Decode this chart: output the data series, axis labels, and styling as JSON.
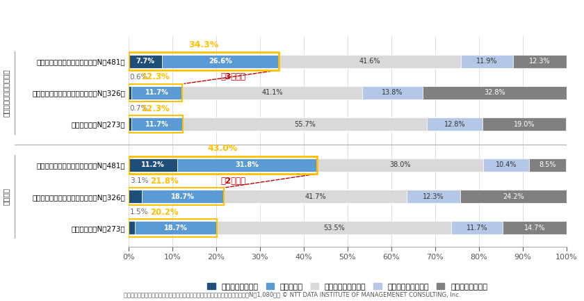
{
  "categories_eng": [
    "働き方改革に取り組んでいる（N＝481）",
    "働き方改革に取り組んでいない（N＝326）",
    "わからない（N＝273）"
  ],
  "categories_cont": [
    "働き方改革に取り組んでいる（N＝481）",
    "働き方改革に取り組んでいない（N＝326）",
    "わからない（N＝273）"
  ],
  "group_label_eng": "従業員エンゲージメント",
  "group_label_cont": "勤続意向",
  "data": [
    [
      7.7,
      26.6,
      41.6,
      11.9,
      12.3
    ],
    [
      0.6,
      11.7,
      41.1,
      13.8,
      32.8
    ],
    [
      0.7,
      11.7,
      55.7,
      12.8,
      19.0
    ],
    [
      11.2,
      31.8,
      38.0,
      10.4,
      8.5
    ],
    [
      3.1,
      18.7,
      41.7,
      12.3,
      24.2
    ],
    [
      1.5,
      18.7,
      53.5,
      11.7,
      14.7
    ]
  ],
  "colors": [
    "#1f4e79",
    "#5b9bd5",
    "#d9d9d9",
    "#b4c7e7",
    "#808080"
  ],
  "legend_labels": [
    "大いに感じている",
    "感じている",
    "どちらともいえない",
    "あまり感じていない",
    "全く感じていない"
  ],
  "highlight_sums": [
    "34.3%",
    "43.0%"
  ],
  "bg_color": "#ffffff",
  "footnote": "「働き方改革が『従業員エンゲージメント』および『勤続意向』に与える影響（N＝1,080）」 © NTT DATA INSTITUTE OF MANAGEMENET CONSULTING, Inc."
}
